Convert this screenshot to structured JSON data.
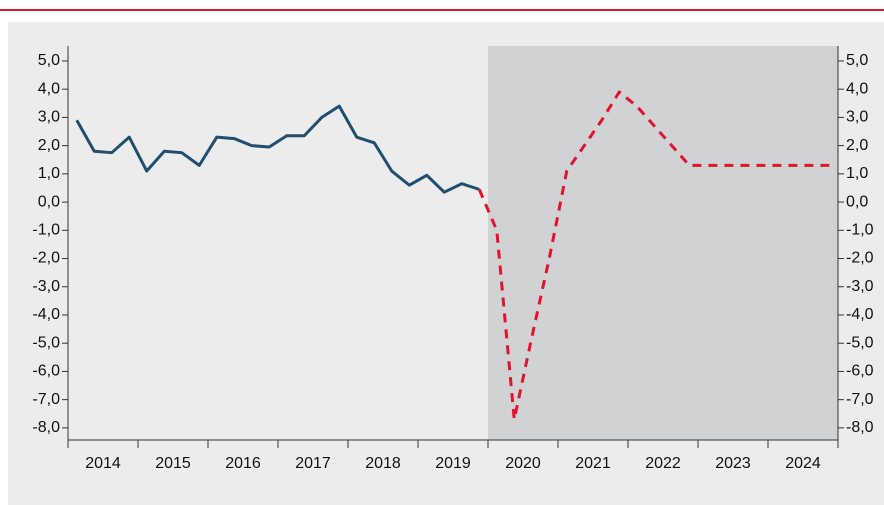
{
  "chart_data": {
    "type": "line",
    "x": [
      2014.125,
      2014.375,
      2014.625,
      2014.875,
      2015.125,
      2015.375,
      2015.625,
      2015.875,
      2016.125,
      2016.375,
      2016.625,
      2016.875,
      2017.125,
      2017.375,
      2017.625,
      2017.875,
      2018.125,
      2018.375,
      2018.625,
      2018.875,
      2019.125,
      2019.375,
      2019.625,
      2019.875,
      2020.125,
      2020.375,
      2020.625,
      2020.875,
      2021.125,
      2021.375,
      2021.625,
      2021.875,
      2022.125,
      2022.375,
      2022.625,
      2022.875,
      2023.125,
      2023.375,
      2023.625,
      2023.875,
      2024.125,
      2024.375,
      2024.625,
      2024.875
    ],
    "series": [
      {
        "color": "#1f4e6e",
        "style": "solid",
        "values": [
          2.9,
          1.8,
          1.75,
          2.3,
          1.1,
          1.8,
          1.75,
          1.3,
          2.3,
          2.25,
          2.0,
          1.95,
          2.35,
          2.35,
          3.0,
          3.4,
          2.3,
          2.1,
          1.1,
          0.6,
          0.95,
          0.35,
          0.65,
          0.45,
          null,
          null,
          null,
          null,
          null,
          null,
          null,
          null,
          null,
          null,
          null,
          null,
          null,
          null,
          null,
          null,
          null,
          null,
          null,
          null
        ]
      },
      {
        "color": "#e0142d",
        "style": "dashed",
        "values": [
          null,
          null,
          null,
          null,
          null,
          null,
          null,
          null,
          null,
          null,
          null,
          null,
          null,
          null,
          null,
          null,
          null,
          null,
          null,
          null,
          null,
          null,
          null,
          0.45,
          -1.0,
          -7.7,
          -4.8,
          -2.0,
          1.1,
          2.0,
          2.9,
          3.9,
          3.4,
          2.7,
          2.0,
          1.3,
          1.3,
          1.3,
          1.3,
          1.3,
          1.3,
          1.3,
          1.3,
          1.3
        ]
      }
    ],
    "xlim": [
      2014,
      2025
    ],
    "xticks": [
      {
        "value": 2014.5,
        "label": "2014"
      },
      {
        "value": 2015.5,
        "label": "2015"
      },
      {
        "value": 2016.5,
        "label": "2016"
      },
      {
        "value": 2017.5,
        "label": "2017"
      },
      {
        "value": 2018.5,
        "label": "2018"
      },
      {
        "value": 2019.5,
        "label": "2019"
      },
      {
        "value": 2020.5,
        "label": "2020"
      },
      {
        "value": 2021.5,
        "label": "2021"
      },
      {
        "value": 2022.5,
        "label": "2022"
      },
      {
        "value": 2023.5,
        "label": "2023"
      },
      {
        "value": 2024.5,
        "label": "2024"
      }
    ],
    "ylim": [
      -8.43,
      5.53
    ],
    "yticks": [
      {
        "value": 5,
        "label": "5,0"
      },
      {
        "value": 4,
        "label": "4,0"
      },
      {
        "value": 3,
        "label": "3,0"
      },
      {
        "value": 2,
        "label": "2,0"
      },
      {
        "value": 1,
        "label": "1,0"
      },
      {
        "value": 0,
        "label": "0,0"
      },
      {
        "value": -1,
        "label": "-1,0"
      },
      {
        "value": -2,
        "label": "-2,0"
      },
      {
        "value": -3,
        "label": "-3,0"
      },
      {
        "value": -4,
        "label": "-4,0"
      },
      {
        "value": -5,
        "label": "-5,0"
      },
      {
        "value": -6,
        "label": "-6,0"
      },
      {
        "value": -7,
        "label": "-7,0"
      },
      {
        "value": -8,
        "label": "-8,0"
      }
    ],
    "forecast_region": [
      2020,
      2025
    ],
    "forecast_color": "#d1d2d4"
  }
}
